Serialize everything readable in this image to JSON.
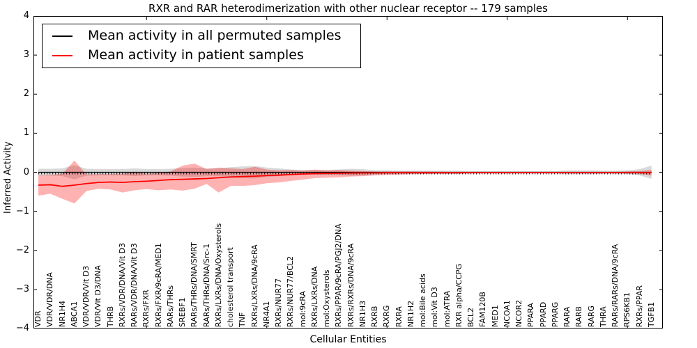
{
  "figure": {
    "title": "RXR and RAR heterodimerization with other nuclear receptor -- 179 samples",
    "xlabel": "Cellular Entities",
    "ylabel": "Inferred Activity"
  },
  "legend": {
    "items": [
      {
        "label": "Mean activity in all permuted samples",
        "color": "#000000"
      },
      {
        "label": "Mean activity in patient samples",
        "color": "#ff0000"
      }
    ]
  },
  "axes": {
    "ylim": [
      -4,
      4
    ],
    "y_ticks": [
      "4",
      "3",
      "2",
      "1",
      "0",
      "−1",
      "−2",
      "−3",
      "−4"
    ]
  },
  "chart_data": {
    "type": "line",
    "title": "RXR and RAR heterodimerization with other nuclear receptor -- 179 samples",
    "xlabel": "Cellular Entities",
    "ylabel": "Inferred Activity",
    "ylim": [
      -4,
      4
    ],
    "grid": false,
    "legend_position": "upper left",
    "categories": [
      "VDR",
      "VDR/VDR/DNA",
      "NR1H4",
      "ABCA1",
      "VDR/VDR/Vit D3",
      "VDR/Vit D3/DNA",
      "THRB",
      "RXRs/VDR/DNA/Vit D3",
      "RARs/VDR/DNA/Vit D3",
      "RXRs/FXR",
      "RXRs/FXR/9cRA/MED1",
      "RARs/THRs",
      "SREBF1",
      "RARs/THRs/DNA/SMRT",
      "RARs/THRs/DNA/Src-1",
      "RXRs/LXRs/DNA/Oxysterols",
      "cholesterol transport",
      "TNF",
      "RXRs/LXRs/DNA/9cRA",
      "NR4A1",
      "RXRs/NUR77",
      "RXRs/NUR77/BCL2",
      "mol:9cRA",
      "RXRs/LXRs/DNA",
      "mol:Oxysterols",
      "RXRs/PPAR/9cRA/PGJ2/DNA",
      "RXRs/RXRs/DNA/9cRA",
      "NR1H3",
      "RXRB",
      "RXRG",
      "RXRA",
      "NR1H2",
      "mol:Bile acids",
      "mol:Vit D3",
      "mol:ATRA",
      "RXR alpha/CCPG",
      "BCL2",
      "FAM120B",
      "MED1",
      "NCOA1",
      "NCOR2",
      "PPARA",
      "PPARD",
      "PPARG",
      "RARA",
      "RARB",
      "RARG",
      "THRA",
      "RARs/RARs/DNA/9cRA",
      "RPS6KB1",
      "RXRs/PPAR",
      "TGFB1"
    ],
    "series": [
      {
        "name": "Mean activity in all permuted samples",
        "color": "#000000",
        "band_color": "rgba(0,0,0,0.15)",
        "values": [
          0,
          0,
          0,
          0,
          0,
          0,
          0,
          0,
          0,
          0,
          0,
          0,
          0,
          0,
          0,
          0,
          0,
          0,
          0,
          0,
          0,
          0,
          0,
          0,
          0,
          0,
          0,
          0,
          0,
          0,
          0,
          0,
          0,
          0,
          0,
          0,
          0,
          0,
          0,
          0,
          0,
          0,
          0,
          0,
          0,
          0,
          0,
          0,
          0,
          0,
          0,
          0
        ],
        "band_upper": [
          0.09,
          0.09,
          0.1,
          0.18,
          0.09,
          0.08,
          0.08,
          0.08,
          0.1,
          0.08,
          0.08,
          0.09,
          0.11,
          0.12,
          0.1,
          0.1,
          0.13,
          0.15,
          0.16,
          0.12,
          0.1,
          0.07,
          0.06,
          0.06,
          0.06,
          0.07,
          0.09,
          0.08,
          0.05,
          0.05,
          0.04,
          0.04,
          0.04,
          0.04,
          0.04,
          0.04,
          0.03,
          0.03,
          0.03,
          0.03,
          0.03,
          0.03,
          0.03,
          0.03,
          0.05,
          0.05,
          0.05,
          0.04,
          0.04,
          0.05,
          0.08,
          0.17
        ],
        "band_lower": [
          -0.09,
          -0.09,
          -0.1,
          -0.18,
          -0.09,
          -0.08,
          -0.08,
          -0.08,
          -0.1,
          -0.08,
          -0.08,
          -0.09,
          -0.11,
          -0.12,
          -0.1,
          -0.1,
          -0.13,
          -0.15,
          -0.16,
          -0.12,
          -0.1,
          -0.07,
          -0.06,
          -0.06,
          -0.06,
          -0.07,
          -0.09,
          -0.08,
          -0.05,
          -0.05,
          -0.04,
          -0.04,
          -0.04,
          -0.04,
          -0.04,
          -0.04,
          -0.03,
          -0.03,
          -0.03,
          -0.03,
          -0.03,
          -0.03,
          -0.03,
          -0.03,
          -0.05,
          -0.05,
          -0.05,
          -0.04,
          -0.04,
          -0.05,
          -0.08,
          -0.17
        ]
      },
      {
        "name": "Mean activity in patient samples",
        "color": "#ff0000",
        "band_color": "rgba(255,0,0,0.30)",
        "values": [
          -0.33,
          -0.32,
          -0.36,
          -0.33,
          -0.29,
          -0.26,
          -0.25,
          -0.26,
          -0.24,
          -0.23,
          -0.21,
          -0.19,
          -0.18,
          -0.17,
          -0.16,
          -0.14,
          -0.12,
          -0.11,
          -0.1,
          -0.085,
          -0.075,
          -0.06,
          -0.045,
          -0.035,
          -0.03,
          -0.025,
          -0.02,
          -0.015,
          -0.015,
          -0.01,
          -0.01,
          -0.01,
          -0.01,
          -0.01,
          -0.01,
          -0.01,
          -0.01,
          -0.01,
          -0.01,
          -0.01,
          -0.01,
          -0.01,
          -0.01,
          -0.01,
          -0.01,
          -0.01,
          -0.01,
          -0.01,
          -0.01,
          -0.01,
          -0.01,
          -0.01
        ],
        "band_upper": [
          -0.08,
          -0.07,
          -0.04,
          0.3,
          -0.06,
          -0.05,
          -0.05,
          -0.04,
          0.0,
          -0.04,
          -0.02,
          0.02,
          0.17,
          0.22,
          0.08,
          0.12,
          0.1,
          0.08,
          0.14,
          0.07,
          0.05,
          0.06,
          0.04,
          0.07,
          0.05,
          0.06,
          0.04,
          0.03,
          0.02,
          0.02,
          0.02,
          0.02,
          0.015,
          0.015,
          0.01,
          0.01,
          0.01,
          0.01,
          0.01,
          0.01,
          0.01,
          0.01,
          0.01,
          0.01,
          0.01,
          0.01,
          0.01,
          0.01,
          0.01,
          0.02,
          0.03,
          0.06
        ],
        "band_lower": [
          -0.6,
          -0.55,
          -0.68,
          -0.8,
          -0.48,
          -0.42,
          -0.44,
          -0.52,
          -0.46,
          -0.43,
          -0.46,
          -0.44,
          -0.47,
          -0.42,
          -0.3,
          -0.52,
          -0.35,
          -0.35,
          -0.33,
          -0.28,
          -0.26,
          -0.22,
          -0.19,
          -0.15,
          -0.14,
          -0.13,
          -0.11,
          -0.1,
          -0.08,
          -0.07,
          -0.06,
          -0.05,
          -0.05,
          -0.04,
          -0.04,
          -0.04,
          -0.03,
          -0.03,
          -0.03,
          -0.03,
          -0.03,
          -0.02,
          -0.02,
          -0.02,
          -0.02,
          -0.02,
          -0.02,
          -0.02,
          -0.02,
          -0.03,
          -0.04,
          -0.08
        ]
      }
    ]
  }
}
